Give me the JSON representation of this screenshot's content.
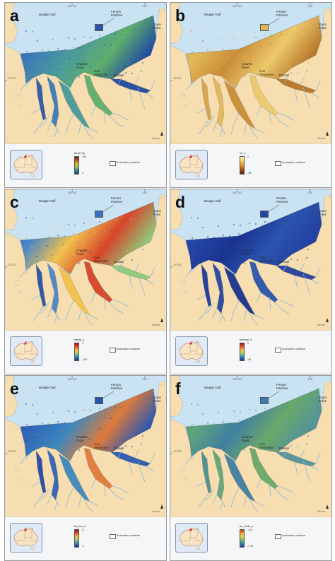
{
  "panels": [
    {
      "letter": "a",
      "legend_title": "Mud (%)",
      "cb_high": "100",
      "cb_low": "0",
      "cb_gradient": [
        "#6b1a0f",
        "#c4501a",
        "#e8b23a",
        "#8cc265",
        "#2c8a8a",
        "#1d3f8f"
      ],
      "map_colors": [
        "#2a58a6",
        "#3d79b8",
        "#4a9a9b",
        "#5fae6c",
        "#1f4aa0"
      ],
      "fenton_swatch": "#2e56a9"
    },
    {
      "letter": "b",
      "legend_title": "bs_u",
      "cb_high": "0",
      "cb_low": "-35",
      "cb_gradient": [
        "#fff5b0",
        "#f4cd5b",
        "#de8f2e",
        "#a14d14",
        "#5a2408"
      ],
      "map_colors": [
        "#d8a24a",
        "#e3b85a",
        "#c98d36",
        "#edc96c",
        "#b7762a"
      ],
      "fenton_swatch": "#e0b65a"
    },
    {
      "letter": "c",
      "legend_title": "bathy_u",
      "cb_high": "0",
      "cb_low": "-100",
      "cb_gradient": [
        "#a3100f",
        "#e8542b",
        "#f7c04a",
        "#8fcf71",
        "#2e87c2",
        "#1a2f8a"
      ],
      "map_colors": [
        "#2750a6",
        "#4a86c9",
        "#f3c24c",
        "#d6452a",
        "#8ecb7a"
      ],
      "fenton_swatch": "#3f6fc3"
    },
    {
      "letter": "d",
      "legend_title": "surface_u",
      "cb_high": "0",
      "cb_low": "-90",
      "cb_gradient": [
        "#a3100f",
        "#e8542b",
        "#f7c04a",
        "#8fcf71",
        "#2e87c2",
        "#1a2f8a"
      ],
      "map_colors": [
        "#1f3a9a",
        "#2547a4",
        "#1a3390",
        "#2a54ad",
        "#253fa0"
      ],
      "fenton_swatch": "#2547a4"
    },
    {
      "letter": "e",
      "legend_title": "bs_loc_u",
      "cb_high": "8",
      "cb_low": "-1",
      "cb_gradient": [
        "#a3100f",
        "#e8542b",
        "#f7c04a",
        "#8fcf71",
        "#2e87c2",
        "#1a2f8a"
      ],
      "map_colors": [
        "#2547a4",
        "#2f63b8",
        "#3c88bd",
        "#e07a3a",
        "#2b58b0"
      ],
      "fenton_swatch": "#2a55ad"
    },
    {
      "letter": "f",
      "legend_title": "bs_histo_u",
      "cb_high": "1.14",
      "cb_low": "-1.10",
      "cb_gradient": [
        "#c9321c",
        "#f1a33c",
        "#d8d954",
        "#74b86e",
        "#2a8ea5",
        "#233a93"
      ],
      "map_colors": [
        "#4a8f8f",
        "#5fa57a",
        "#3f7fa1",
        "#6aa86a",
        "#52939a"
      ],
      "fenton_swatch": "#3f78b0"
    }
  ],
  "labels": {
    "beagle_gulf": "Beagle Gulf",
    "fenton_patches": "Fenton\nPatches",
    "gunn_point": "Gunn\nPoint",
    "charles_point": "Charles\nPoint",
    "cox_peninsula": "Cox\nPeninsula",
    "darwin": "Darwin",
    "lon_tick_1": "130°30'",
    "lon_tick_2": "131°",
    "lat_tick": "-12°30'",
    "scale": "40 km",
    "coastline_legend": "Australian coastline"
  },
  "colors": {
    "land": "#f6deb0",
    "water": "#c9e3f3",
    "creek": "#8ab9dc",
    "panel_border": "#9a9a9a",
    "aus_land": "#f7e4c2",
    "aus_border": "#b27b6a",
    "marker": "#e0231c"
  }
}
